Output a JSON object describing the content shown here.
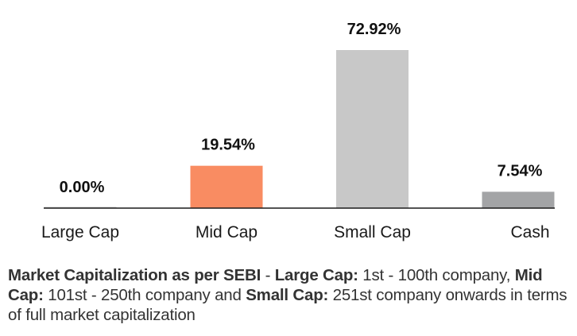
{
  "chart_data": {
    "type": "bar",
    "title": "",
    "xlabel": "",
    "ylabel": "",
    "categories": [
      "Large Cap",
      "Mid Cap",
      "Small Cap",
      "Cash"
    ],
    "values": [
      0.0,
      19.54,
      72.92,
      7.54
    ],
    "value_labels": [
      "0.00%",
      "19.54%",
      "72.92%",
      "7.54%"
    ],
    "colors": [
      "#c8c8c8",
      "#f98c62",
      "#c8c8c8",
      "#a3a4a6"
    ],
    "ylim": [
      0,
      80
    ],
    "grid": false,
    "legend": "none",
    "axis_color": "#1a1a1a"
  },
  "footnote": {
    "segments": [
      {
        "text": "Market Capitalization as per SEBI",
        "bold": true
      },
      {
        "text": " - ",
        "bold": false
      },
      {
        "text": "Large Cap:",
        "bold": true
      },
      {
        "text": " 1st - 100th company, ",
        "bold": false
      },
      {
        "text": "Mid Cap:",
        "bold": true
      },
      {
        "text": " 101st - 250th company and ",
        "bold": false
      },
      {
        "text": "Small Cap:",
        "bold": true
      },
      {
        "text": " 251st company onwards in terms of full market capitalization",
        "bold": false
      }
    ]
  }
}
